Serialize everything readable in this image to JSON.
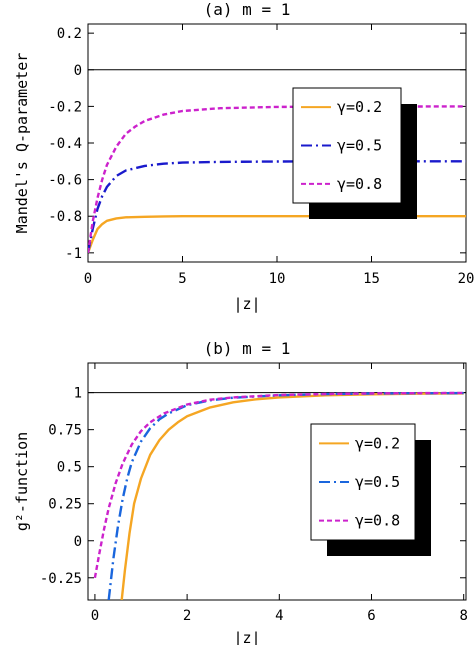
{
  "chart_data": [
    {
      "type": "line",
      "title": "(a) m = 1",
      "xlabel": "|z|",
      "ylabel": "Mandel's Q-parameter",
      "xlim": [
        0,
        20
      ],
      "ylim": [
        -1.05,
        0.25
      ],
      "xticks": [
        0,
        5,
        10,
        15,
        20
      ],
      "xtick_labels": [
        "0",
        "5",
        "10",
        "15",
        "20"
      ],
      "yticks": [
        -1,
        -0.8,
        -0.6,
        -0.4,
        -0.2,
        0,
        0.2
      ],
      "ytick_labels": [
        "-1",
        "-0.8",
        "-0.6",
        "-0.4",
        "-0.2",
        "0",
        "0.2"
      ],
      "reference_line": 0,
      "legend_placement": "right",
      "series": [
        {
          "name": "γ=0.2",
          "color": "#f5a623",
          "dash": "solid",
          "x": [
            0,
            0.25,
            0.5,
            0.75,
            1,
            1.5,
            2,
            3,
            4,
            5,
            7,
            10,
            15,
            20
          ],
          "y": [
            -1,
            -0.93,
            -0.87,
            -0.843,
            -0.825,
            -0.812,
            -0.806,
            -0.803,
            -0.801,
            -0.8,
            -0.8,
            -0.8,
            -0.8,
            -0.8
          ]
        },
        {
          "name": "γ=0.5",
          "color": "#1a1acc",
          "dash": "dashdot",
          "x": [
            0,
            0.25,
            0.5,
            0.75,
            1,
            1.5,
            2,
            3,
            4,
            5,
            7,
            10,
            15,
            20
          ],
          "y": [
            -1,
            -0.87,
            -0.76,
            -0.69,
            -0.64,
            -0.58,
            -0.55,
            -0.525,
            -0.513,
            -0.507,
            -0.503,
            -0.501,
            -0.5,
            -0.5
          ]
        },
        {
          "name": "γ=0.8",
          "color": "#cc22cc",
          "dash": "dashed",
          "x": [
            0,
            0.25,
            0.5,
            0.75,
            1,
            1.5,
            2,
            2.5,
            3,
            4,
            5,
            7,
            10,
            15,
            20
          ],
          "y": [
            -1,
            -0.83,
            -0.7,
            -0.6,
            -0.52,
            -0.42,
            -0.35,
            -0.31,
            -0.28,
            -0.245,
            -0.225,
            -0.21,
            -0.203,
            -0.201,
            -0.2
          ]
        }
      ]
    },
    {
      "type": "line",
      "title": "(b) m = 1",
      "xlabel": "|z|",
      "ylabel": "g²-function",
      "xlim": [
        -0.15,
        8.05
      ],
      "ylim": [
        -0.4,
        1.2
      ],
      "xticks": [
        0,
        2,
        4,
        6,
        8
      ],
      "xtick_labels": [
        "0",
        "2",
        "4",
        "6",
        "8"
      ],
      "yticks": [
        -0.25,
        0,
        0.25,
        0.5,
        0.75,
        1
      ],
      "ytick_labels": [
        "-0.25",
        "0",
        "0.25",
        "0.5",
        "0.75",
        "1"
      ],
      "reference_line": 1,
      "legend_placement": "right",
      "series": [
        {
          "name": "γ=0.2",
          "color": "#f5a623",
          "dash": "solid",
          "x": [
            0.58,
            0.65,
            0.75,
            0.85,
            1,
            1.2,
            1.4,
            1.6,
            1.8,
            2,
            2.5,
            3,
            3.5,
            4,
            5,
            6,
            7,
            8
          ],
          "y": [
            -0.4,
            -0.2,
            0.05,
            0.25,
            0.42,
            0.58,
            0.68,
            0.75,
            0.8,
            0.84,
            0.9,
            0.935,
            0.955,
            0.968,
            0.982,
            0.989,
            0.993,
            0.995
          ]
        },
        {
          "name": "γ=0.5",
          "color": "#1a66dd",
          "dash": "dashdot",
          "x": [
            0.3,
            0.4,
            0.5,
            0.6,
            0.7,
            0.8,
            1,
            1.2,
            1.4,
            1.6,
            2,
            2.5,
            3,
            4,
            5,
            6,
            8
          ],
          "y": [
            -0.4,
            -0.12,
            0.1,
            0.28,
            0.42,
            0.53,
            0.67,
            0.76,
            0.82,
            0.86,
            0.915,
            0.948,
            0.966,
            0.982,
            0.99,
            0.994,
            0.997
          ]
        },
        {
          "name": "γ=0.8",
          "color": "#cc22cc",
          "dash": "dashed",
          "x": [
            0,
            0.1,
            0.2,
            0.3,
            0.45,
            0.6,
            0.8,
            1,
            1.2,
            1.5,
            2,
            2.5,
            3,
            4,
            5,
            6,
            8
          ],
          "y": [
            -0.25,
            -0.08,
            0.08,
            0.22,
            0.39,
            0.52,
            0.65,
            0.74,
            0.8,
            0.86,
            0.92,
            0.952,
            0.968,
            0.984,
            0.991,
            0.995,
            0.998
          ]
        }
      ]
    }
  ]
}
